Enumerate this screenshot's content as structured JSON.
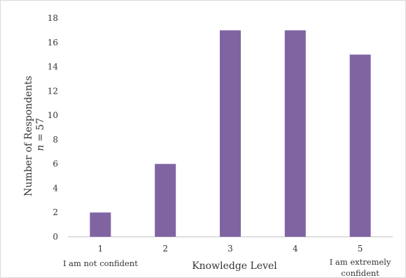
{
  "chart_data": {
    "type": "bar",
    "categories": [
      "1",
      "2",
      "3",
      "4",
      "5"
    ],
    "values": [
      2,
      6,
      17,
      17,
      15
    ],
    "xlabel": "Knowledge Level",
    "ylabel": "Number of Respondents",
    "ylabel_note_var": "n",
    "ylabel_note_rest": " = 57",
    "ylim": [
      0,
      18
    ],
    "yticks": [
      0,
      2,
      4,
      6,
      8,
      10,
      12,
      14,
      16,
      18
    ],
    "grid": false,
    "legend": "none",
    "bar_color": "#8064a2",
    "annotations": {
      "low": "I am not confident",
      "high_line1": "I am extremely",
      "high_line2": "confident"
    }
  }
}
